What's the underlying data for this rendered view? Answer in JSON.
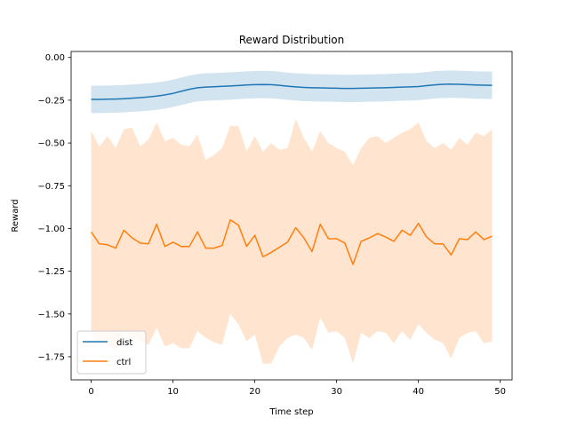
{
  "chart_data": {
    "type": "line",
    "title": "Reward Distribution",
    "xlabel": "Time step",
    "ylabel": "Reward",
    "xlim": [
      -2.45,
      51.45
    ],
    "ylim": [
      -1.885,
      0.035
    ],
    "xticks": [
      0,
      10,
      20,
      30,
      40,
      50
    ],
    "yticks": [
      0.0,
      -0.25,
      -0.5,
      -0.75,
      -1.0,
      -1.25,
      -1.5,
      -1.75
    ],
    "ytick_labels": [
      "0.00",
      "−0.25",
      "−0.50",
      "−0.75",
      "−1.00",
      "−1.25",
      "−1.50",
      "−1.75"
    ],
    "grid": false,
    "legend_position": "lower-left",
    "x": [
      0,
      1,
      2,
      3,
      4,
      5,
      6,
      7,
      8,
      9,
      10,
      11,
      12,
      13,
      14,
      15,
      16,
      17,
      18,
      19,
      20,
      21,
      22,
      23,
      24,
      25,
      26,
      27,
      28,
      29,
      30,
      31,
      32,
      33,
      34,
      35,
      36,
      37,
      38,
      39,
      40,
      41,
      42,
      43,
      44,
      45,
      46,
      47,
      48,
      49
    ],
    "series": [
      {
        "name": "dist",
        "color": "#1f77b4",
        "band_color": "#1f77b4",
        "values": [
          -0.245,
          -0.245,
          -0.244,
          -0.243,
          -0.241,
          -0.238,
          -0.235,
          -0.231,
          -0.226,
          -0.219,
          -0.21,
          -0.198,
          -0.186,
          -0.177,
          -0.173,
          -0.171,
          -0.169,
          -0.167,
          -0.164,
          -0.161,
          -0.159,
          -0.158,
          -0.159,
          -0.163,
          -0.168,
          -0.172,
          -0.175,
          -0.177,
          -0.178,
          -0.179,
          -0.18,
          -0.181,
          -0.181,
          -0.18,
          -0.179,
          -0.178,
          -0.177,
          -0.175,
          -0.173,
          -0.172,
          -0.17,
          -0.165,
          -0.16,
          -0.157,
          -0.156,
          -0.157,
          -0.159,
          -0.161,
          -0.162,
          -0.163
        ],
        "lower": [
          -0.325,
          -0.325,
          -0.324,
          -0.323,
          -0.321,
          -0.318,
          -0.315,
          -0.311,
          -0.306,
          -0.299,
          -0.29,
          -0.278,
          -0.266,
          -0.257,
          -0.253,
          -0.251,
          -0.249,
          -0.247,
          -0.244,
          -0.241,
          -0.239,
          -0.238,
          -0.239,
          -0.243,
          -0.248,
          -0.252,
          -0.255,
          -0.257,
          -0.258,
          -0.259,
          -0.26,
          -0.261,
          -0.261,
          -0.26,
          -0.259,
          -0.258,
          -0.257,
          -0.255,
          -0.253,
          -0.252,
          -0.25,
          -0.245,
          -0.24,
          -0.237,
          -0.236,
          -0.237,
          -0.239,
          -0.241,
          -0.242,
          -0.243
        ],
        "upper": [
          -0.165,
          -0.165,
          -0.164,
          -0.163,
          -0.161,
          -0.158,
          -0.155,
          -0.151,
          -0.146,
          -0.139,
          -0.13,
          -0.118,
          -0.106,
          -0.097,
          -0.093,
          -0.091,
          -0.089,
          -0.087,
          -0.084,
          -0.081,
          -0.079,
          -0.078,
          -0.079,
          -0.083,
          -0.088,
          -0.092,
          -0.095,
          -0.097,
          -0.098,
          -0.099,
          -0.1,
          -0.101,
          -0.101,
          -0.1,
          -0.099,
          -0.098,
          -0.097,
          -0.095,
          -0.093,
          -0.092,
          -0.09,
          -0.085,
          -0.08,
          -0.077,
          -0.076,
          -0.077,
          -0.079,
          -0.081,
          -0.082,
          -0.083
        ]
      },
      {
        "name": "ctrl",
        "color": "#ff7f0e",
        "band_color": "#ff7f0e",
        "values": [
          -1.02,
          -1.09,
          -1.095,
          -1.115,
          -1.01,
          -1.055,
          -1.085,
          -1.09,
          -0.975,
          -1.105,
          -1.08,
          -1.105,
          -1.105,
          -1.02,
          -1.115,
          -1.115,
          -1.1,
          -0.95,
          -0.98,
          -1.105,
          -1.04,
          -1.165,
          -1.14,
          -1.11,
          -1.08,
          -0.995,
          -1.055,
          -1.135,
          -0.975,
          -1.06,
          -1.06,
          -1.085,
          -1.21,
          -1.075,
          -1.055,
          -1.03,
          -1.05,
          -1.075,
          -1.01,
          -1.04,
          -0.97,
          -1.05,
          -1.09,
          -1.09,
          -1.155,
          -1.06,
          -1.065,
          -1.02,
          -1.065,
          -1.045
        ],
        "lower": [
          -1.61,
          -1.67,
          -1.68,
          -1.71,
          -1.6,
          -1.63,
          -1.66,
          -1.68,
          -1.58,
          -1.69,
          -1.67,
          -1.7,
          -1.7,
          -1.6,
          -1.64,
          -1.665,
          -1.68,
          -1.5,
          -1.56,
          -1.66,
          -1.62,
          -1.79,
          -1.79,
          -1.69,
          -1.64,
          -1.62,
          -1.64,
          -1.71,
          -1.52,
          -1.61,
          -1.6,
          -1.64,
          -1.79,
          -1.61,
          -1.64,
          -1.6,
          -1.61,
          -1.67,
          -1.6,
          -1.65,
          -1.56,
          -1.61,
          -1.65,
          -1.67,
          -1.76,
          -1.64,
          -1.61,
          -1.6,
          -1.67,
          -1.66
        ],
        "upper": [
          -0.43,
          -0.52,
          -0.46,
          -0.53,
          -0.42,
          -0.41,
          -0.52,
          -0.48,
          -0.38,
          -0.49,
          -0.47,
          -0.51,
          -0.52,
          -0.45,
          -0.6,
          -0.57,
          -0.53,
          -0.4,
          -0.4,
          -0.55,
          -0.46,
          -0.55,
          -0.5,
          -0.54,
          -0.53,
          -0.36,
          -0.47,
          -0.55,
          -0.43,
          -0.5,
          -0.53,
          -0.55,
          -0.63,
          -0.53,
          -0.47,
          -0.46,
          -0.5,
          -0.47,
          -0.44,
          -0.42,
          -0.38,
          -0.49,
          -0.53,
          -0.5,
          -0.54,
          -0.47,
          -0.51,
          -0.44,
          -0.46,
          -0.42
        ]
      }
    ]
  }
}
